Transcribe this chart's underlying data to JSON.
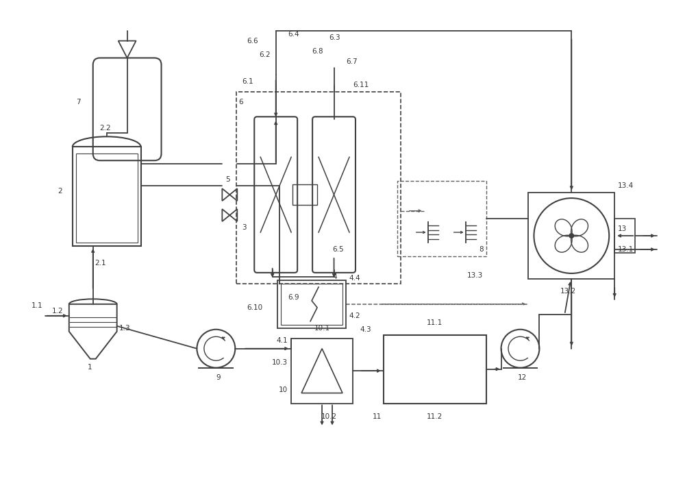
{
  "bg_color": "#ffffff",
  "lc": "#404040",
  "dc": "#606060",
  "tc": "#333333",
  "figsize": [
    10.0,
    6.99
  ],
  "dpi": 100,
  "xlim": [
    0,
    100
  ],
  "ylim": [
    0,
    69.9
  ]
}
